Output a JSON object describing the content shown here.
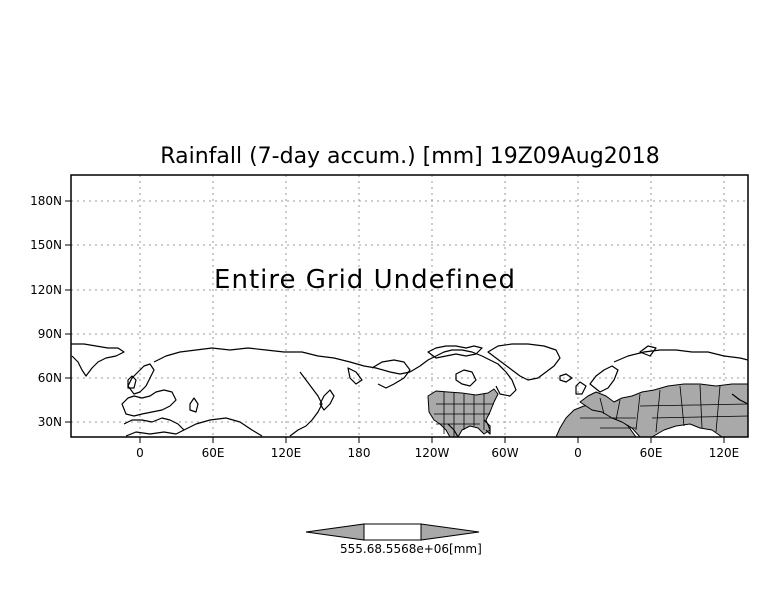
{
  "map": {
    "title": "Rainfall (7-day accum.) [mm] 19Z09Aug2018",
    "note": "Entire Grid Undefined",
    "lat_ticks": [
      "180N",
      "150N",
      "120N",
      "90N",
      "60N",
      "30N"
    ],
    "lon_ticks": [
      "0",
      "60E",
      "120E",
      "180",
      "120W",
      "60W",
      "0",
      "60E",
      "120E"
    ],
    "colors": {
      "frame": "#000000",
      "grid": "#9a9a9a",
      "land_shaded": "#a9a9a9",
      "colorbar_arrows": "#a9a9a9",
      "colorbar_center": "#ffffff"
    }
  },
  "colorbar": {
    "label": "555.68.5568e+06[mm]"
  }
}
